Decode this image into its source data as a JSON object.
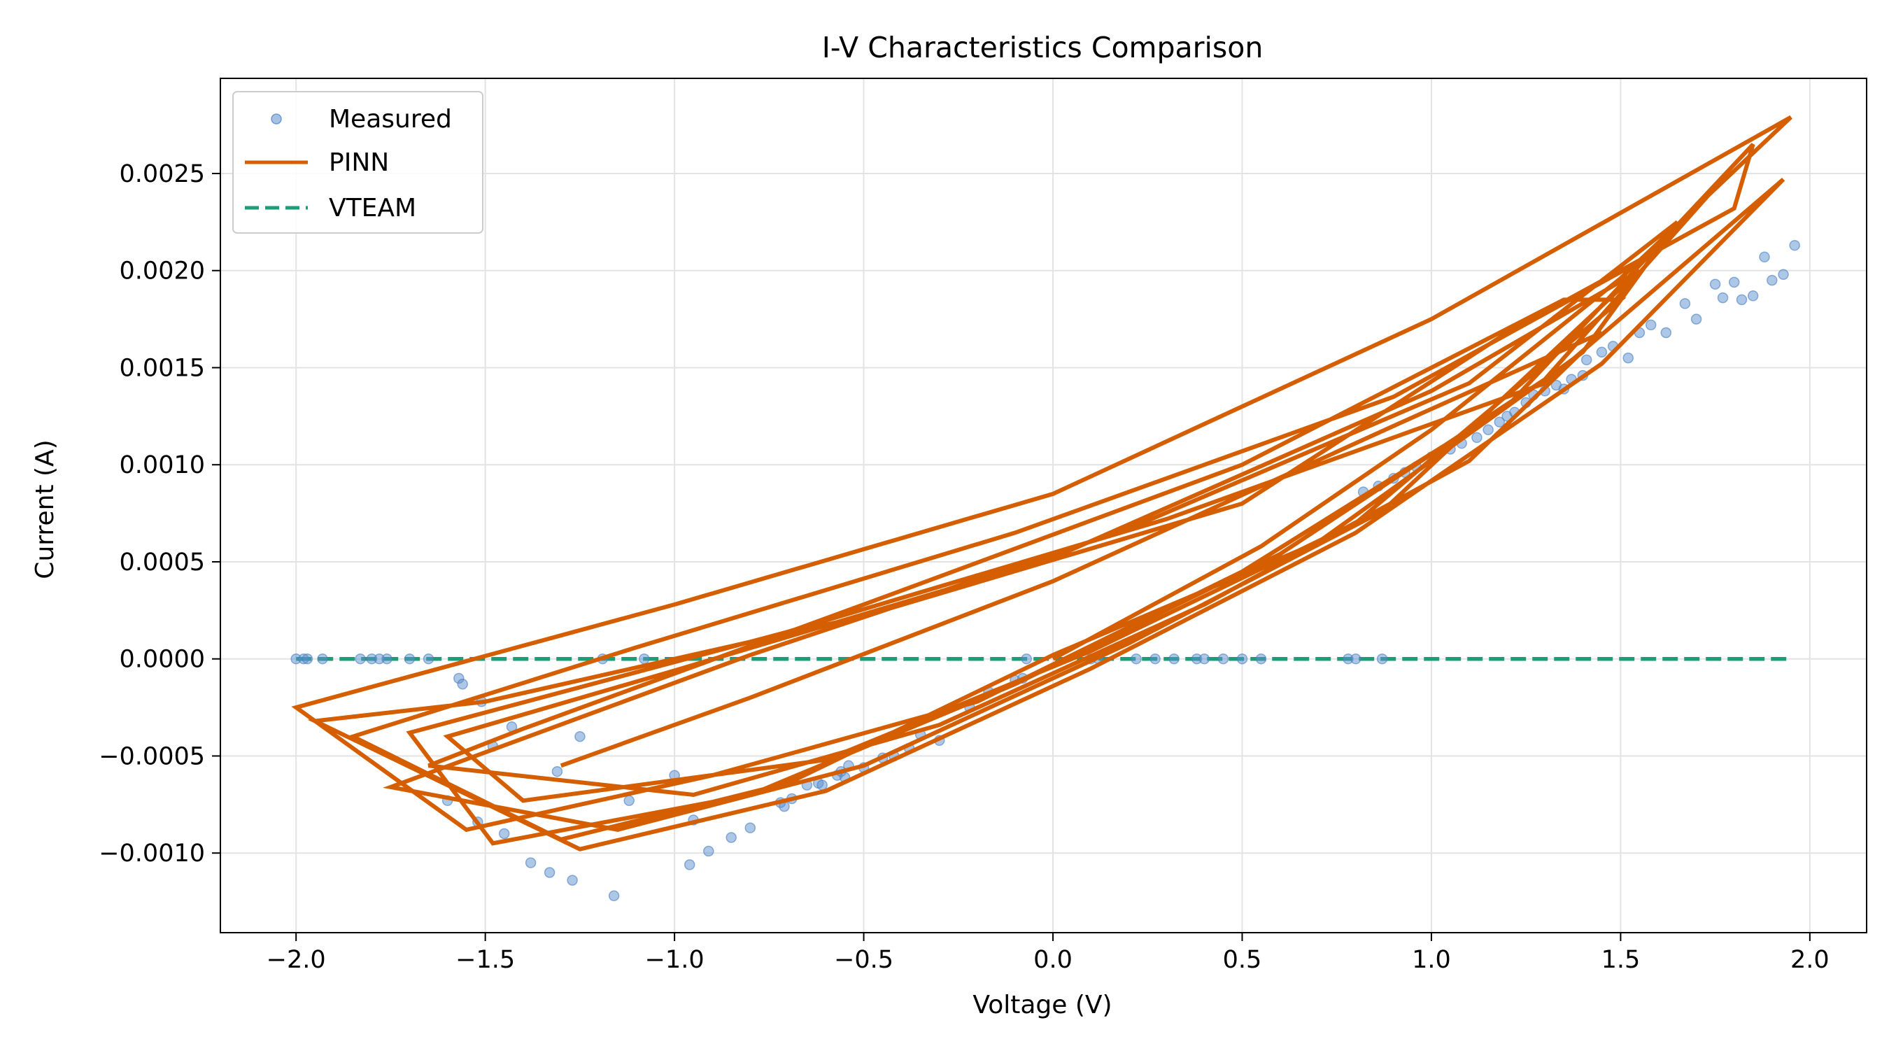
{
  "chart_data": {
    "type": "line",
    "title": "I-V Characteristics Comparison",
    "xlabel": "Voltage (V)",
    "ylabel": "Current (A)",
    "xlim": [
      -2.2,
      2.15
    ],
    "ylim": [
      -0.00141,
      0.00299
    ],
    "x_ticks": [
      -2.0,
      -1.5,
      -1.0,
      -0.5,
      0.0,
      0.5,
      1.0,
      1.5,
      2.0
    ],
    "x_tick_labels": [
      "−2.0",
      "−1.5",
      "−1.0",
      "−0.5",
      "0.0",
      "0.5",
      "1.0",
      "1.5",
      "2.0"
    ],
    "y_ticks": [
      -0.001,
      -0.0005,
      0.0,
      0.0005,
      0.001,
      0.0015,
      0.002,
      0.0025
    ],
    "y_tick_labels": [
      "−0.0010",
      "−0.0005",
      "0.0000",
      "0.0005",
      "0.0010",
      "0.0015",
      "0.0020",
      "0.0025"
    ],
    "grid": true,
    "legend_position": "top-left",
    "series": [
      {
        "name": "Measured",
        "kind": "scatter",
        "color": "#5b8fd0",
        "points": [
          [
            -2.0,
            0.0
          ],
          [
            -1.98,
            0.0
          ],
          [
            -1.97,
            0.0
          ],
          [
            -1.93,
            0.0
          ],
          [
            -1.83,
            0.0
          ],
          [
            -1.8,
            0.0
          ],
          [
            -1.78,
            0.0
          ],
          [
            -1.76,
            0.0
          ],
          [
            -1.7,
            0.0
          ],
          [
            -1.65,
            0.0
          ],
          [
            -1.6,
            -0.00073
          ],
          [
            -1.57,
            -0.0001
          ],
          [
            -1.56,
            -0.00013
          ],
          [
            -1.52,
            -0.00084
          ],
          [
            -1.51,
            -0.00022
          ],
          [
            -1.48,
            -0.00045
          ],
          [
            -1.45,
            -0.0009
          ],
          [
            -1.43,
            -0.00035
          ],
          [
            -1.38,
            -0.00105
          ],
          [
            -1.33,
            -0.0011
          ],
          [
            -1.31,
            -0.00058
          ],
          [
            -1.27,
            -0.00114
          ],
          [
            -1.25,
            -0.0004
          ],
          [
            -1.19,
            0.0
          ],
          [
            -1.16,
            -0.00122
          ],
          [
            -1.12,
            -0.00073
          ],
          [
            -1.08,
            0.0
          ],
          [
            -1.0,
            -0.0006
          ],
          [
            -0.96,
            -0.00106
          ],
          [
            -0.95,
            -0.00083
          ],
          [
            -0.91,
            -0.00099
          ],
          [
            -0.85,
            -0.00092
          ],
          [
            -0.8,
            -0.00087
          ],
          [
            -0.72,
            -0.00074
          ],
          [
            -0.71,
            -0.00076
          ],
          [
            -0.69,
            -0.00072
          ],
          [
            -0.65,
            -0.00065
          ],
          [
            -0.62,
            -0.00064
          ],
          [
            -0.61,
            -0.00065
          ],
          [
            -0.57,
            -0.0006
          ],
          [
            -0.56,
            -0.00058
          ],
          [
            -0.55,
            -0.00061
          ],
          [
            -0.54,
            -0.00055
          ],
          [
            -0.5,
            -0.00056
          ],
          [
            -0.45,
            -0.00051
          ],
          [
            -0.42,
            -0.0005
          ],
          [
            -0.38,
            -0.00046
          ],
          [
            -0.35,
            -0.00039
          ],
          [
            -0.3,
            -0.00042
          ],
          [
            -0.22,
            -0.00025
          ],
          [
            -0.17,
            -0.00017
          ],
          [
            -0.1,
            -0.00011
          ],
          [
            -0.08,
            -0.0001
          ],
          [
            -0.07,
            0.0
          ],
          [
            0.1,
            0.0
          ],
          [
            0.12,
            0.0
          ],
          [
            0.22,
            0.0
          ],
          [
            0.27,
            0.0
          ],
          [
            0.32,
            0.0
          ],
          [
            0.38,
            0.0
          ],
          [
            0.4,
            0.0
          ],
          [
            0.45,
            0.0
          ],
          [
            0.5,
            0.0
          ],
          [
            0.55,
            0.0
          ],
          [
            0.78,
            0.0
          ],
          [
            0.8,
            0.0
          ],
          [
            0.87,
            0.0
          ],
          [
            0.82,
            0.00086
          ],
          [
            0.86,
            0.00089
          ],
          [
            0.9,
            0.00093
          ],
          [
            0.93,
            0.00096
          ],
          [
            0.96,
            0.00099
          ],
          [
            1.0,
            0.00104
          ],
          [
            1.02,
            0.00106
          ],
          [
            1.05,
            0.00108
          ],
          [
            1.08,
            0.00111
          ],
          [
            1.12,
            0.00114
          ],
          [
            1.15,
            0.00118
          ],
          [
            1.18,
            0.00122
          ],
          [
            1.2,
            0.00125
          ],
          [
            1.22,
            0.00127
          ],
          [
            1.25,
            0.00132
          ],
          [
            1.27,
            0.00136
          ],
          [
            1.3,
            0.00138
          ],
          [
            1.33,
            0.00141
          ],
          [
            1.35,
            0.00139
          ],
          [
            1.37,
            0.00144
          ],
          [
            1.4,
            0.00146
          ],
          [
            1.41,
            0.00154
          ],
          [
            1.45,
            0.00158
          ],
          [
            1.48,
            0.00161
          ],
          [
            1.52,
            0.00155
          ],
          [
            1.55,
            0.00168
          ],
          [
            1.58,
            0.00172
          ],
          [
            1.62,
            0.00168
          ],
          [
            1.67,
            0.00183
          ],
          [
            1.7,
            0.00175
          ],
          [
            1.75,
            0.00193
          ],
          [
            1.77,
            0.00186
          ],
          [
            1.8,
            0.00194
          ],
          [
            1.82,
            0.00185
          ],
          [
            1.85,
            0.00187
          ],
          [
            1.88,
            0.00207
          ],
          [
            1.9,
            0.00195
          ],
          [
            1.93,
            0.00198
          ],
          [
            1.96,
            0.00213
          ]
        ]
      },
      {
        "name": "PINN",
        "kind": "line",
        "color": "#d55e00",
        "points": [
          [
            0.0,
            0.0
          ],
          [
            0.55,
            0.00058
          ],
          [
            1.0,
            0.00118
          ],
          [
            1.5,
            0.00196
          ],
          [
            1.95,
            0.00279
          ],
          [
            1.0,
            0.00175
          ],
          [
            0.0,
            0.00085
          ],
          [
            -1.0,
            0.00028
          ],
          [
            -2.0,
            -0.00025
          ],
          [
            -1.55,
            -0.00088
          ],
          [
            -0.9,
            -0.0006
          ],
          [
            -0.2,
            -0.00022
          ],
          [
            0.5,
            0.00045
          ],
          [
            1.2,
            0.0013
          ],
          [
            1.85,
            0.00265
          ],
          [
            1.8,
            0.00232
          ],
          [
            1.2,
            0.00168
          ],
          [
            0.5,
            0.0008
          ],
          [
            -0.5,
            0.00022
          ],
          [
            -1.5,
            -0.00022
          ],
          [
            -1.95,
            -0.00032
          ],
          [
            -1.25,
            -0.00098
          ],
          [
            -0.6,
            -0.00068
          ],
          [
            0.1,
            -5e-05
          ],
          [
            0.8,
            0.00065
          ],
          [
            1.45,
            0.00152
          ],
          [
            1.93,
            0.00247
          ],
          [
            1.3,
            0.00142
          ],
          [
            0.3,
            0.00072
          ],
          [
            -0.7,
            0.00014
          ],
          [
            -1.7,
            -0.00038
          ],
          [
            -1.48,
            -0.00095
          ],
          [
            -0.8,
            -0.0007
          ],
          [
            -0.1,
            -0.00013
          ],
          [
            0.6,
            0.00054
          ],
          [
            1.3,
            0.00144
          ],
          [
            1.76,
            0.00245
          ],
          [
            1.6,
            0.0021
          ],
          [
            0.9,
            0.00135
          ],
          [
            -0.1,
            0.00065
          ],
          [
            -1.1,
            6e-05
          ],
          [
            -1.85,
            -0.0004
          ],
          [
            -1.3,
            -0.00093
          ],
          [
            -0.7,
            -0.00064
          ],
          [
            0.0,
            2e-05
          ],
          [
            0.7,
            0.0006
          ],
          [
            1.4,
            0.00158
          ],
          [
            1.65,
            0.00225
          ],
          [
            1.1,
            0.00142
          ],
          [
            0.2,
            0.00067
          ],
          [
            -0.8,
            2e-05
          ],
          [
            -1.75,
            -0.00066
          ],
          [
            -1.15,
            -0.00088
          ],
          [
            -0.5,
            -0.00055
          ],
          [
            0.2,
            8e-05
          ],
          [
            0.87,
            0.00076
          ],
          [
            1.55,
            0.002
          ],
          [
            1.0,
            0.00138
          ],
          [
            0.0,
            0.00052
          ],
          [
            -1.0,
            -6e-05
          ],
          [
            -1.6,
            -0.0004
          ],
          [
            -1.4,
            -0.00073
          ],
          [
            -0.6,
            -0.00052
          ],
          [
            0.1,
            4e-05
          ],
          [
            0.8,
            0.0007
          ],
          [
            1.5,
            0.00185
          ],
          [
            1.35,
            0.00185
          ],
          [
            0.5,
            0.001
          ],
          [
            -0.5,
            0.00028
          ],
          [
            -1.4,
            -0.00036
          ],
          [
            -1.65,
            -0.00055
          ],
          [
            -0.95,
            -0.0007
          ],
          [
            -0.3,
            -0.00034
          ],
          [
            0.4,
            0.00028
          ],
          [
            1.1,
            0.00102
          ],
          [
            1.45,
            0.00168
          ],
          [
            0.9,
            0.0012
          ],
          [
            0.0,
            0.0004
          ],
          [
            -0.8,
            -0.0002
          ],
          [
            -1.3,
            -0.00055
          ]
        ]
      },
      {
        "name": "VTEAM",
        "kind": "dashed-line",
        "color": "#1b9e77",
        "points": [
          [
            -2.0,
            0.0
          ],
          [
            -1.5,
            0.0
          ],
          [
            -1.0,
            0.0
          ],
          [
            -0.5,
            0.0
          ],
          [
            0.0,
            0.0
          ],
          [
            0.5,
            0.0
          ],
          [
            1.0,
            0.0
          ],
          [
            1.5,
            0.0
          ],
          [
            1.95,
            0.0
          ]
        ]
      }
    ]
  }
}
